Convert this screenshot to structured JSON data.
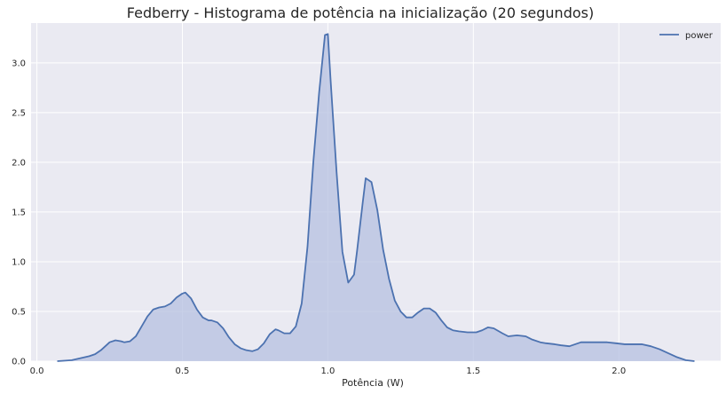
{
  "chart_data": {
    "type": "area",
    "title": "Fedberry - Histograma de potência na inicialização (20 segundos)",
    "xlabel": "Potência (W)",
    "ylabel": "",
    "xlim": [
      -0.02,
      2.35
    ],
    "ylim": [
      0,
      3.4
    ],
    "xticks": [
      0.0,
      0.5,
      1.0,
      1.5,
      2.0
    ],
    "xtick_labels": [
      "0.0",
      "0.5",
      "1.0",
      "1.5",
      "2.0"
    ],
    "yticks": [
      0.0,
      0.5,
      1.0,
      1.5,
      2.0,
      2.5,
      3.0
    ],
    "ytick_labels": [
      "0.0",
      "0.5",
      "1.0",
      "1.5",
      "2.0",
      "2.5",
      "3.0"
    ],
    "grid": true,
    "legend_position": "top-right",
    "series": [
      {
        "name": "power",
        "color": "#4c72b0",
        "fill_color": "#b6c0e0",
        "x": [
          0.07,
          0.12,
          0.15,
          0.18,
          0.2,
          0.22,
          0.25,
          0.27,
          0.29,
          0.3,
          0.32,
          0.34,
          0.36,
          0.38,
          0.4,
          0.42,
          0.44,
          0.46,
          0.48,
          0.5,
          0.51,
          0.53,
          0.55,
          0.57,
          0.59,
          0.6,
          0.62,
          0.64,
          0.66,
          0.68,
          0.7,
          0.72,
          0.74,
          0.76,
          0.78,
          0.8,
          0.82,
          0.83,
          0.85,
          0.87,
          0.89,
          0.91,
          0.93,
          0.95,
          0.97,
          0.99,
          1.0,
          1.01,
          1.03,
          1.05,
          1.07,
          1.09,
          1.1,
          1.12,
          1.13,
          1.15,
          1.17,
          1.19,
          1.21,
          1.23,
          1.25,
          1.27,
          1.29,
          1.31,
          1.33,
          1.35,
          1.37,
          1.39,
          1.41,
          1.43,
          1.45,
          1.48,
          1.51,
          1.53,
          1.55,
          1.57,
          1.6,
          1.62,
          1.65,
          1.68,
          1.7,
          1.73,
          1.75,
          1.78,
          1.8,
          1.83,
          1.87,
          1.9,
          1.93,
          1.96,
          1.99,
          2.02,
          2.05,
          2.08,
          2.11,
          2.14,
          2.17,
          2.2,
          2.23,
          2.26
        ],
        "y": [
          0.0,
          0.01,
          0.03,
          0.05,
          0.07,
          0.11,
          0.19,
          0.21,
          0.2,
          0.19,
          0.2,
          0.25,
          0.35,
          0.45,
          0.52,
          0.54,
          0.55,
          0.58,
          0.64,
          0.68,
          0.69,
          0.63,
          0.52,
          0.44,
          0.41,
          0.41,
          0.39,
          0.33,
          0.24,
          0.17,
          0.13,
          0.11,
          0.1,
          0.12,
          0.18,
          0.27,
          0.32,
          0.31,
          0.28,
          0.28,
          0.35,
          0.58,
          1.15,
          2.0,
          2.7,
          3.28,
          3.29,
          2.8,
          1.9,
          1.1,
          0.79,
          0.87,
          1.1,
          1.6,
          1.84,
          1.8,
          1.52,
          1.12,
          0.83,
          0.61,
          0.5,
          0.44,
          0.44,
          0.49,
          0.53,
          0.53,
          0.49,
          0.41,
          0.34,
          0.31,
          0.3,
          0.29,
          0.29,
          0.31,
          0.34,
          0.33,
          0.28,
          0.25,
          0.26,
          0.25,
          0.22,
          0.19,
          0.18,
          0.17,
          0.16,
          0.15,
          0.19,
          0.19,
          0.19,
          0.19,
          0.18,
          0.17,
          0.17,
          0.17,
          0.15,
          0.12,
          0.08,
          0.04,
          0.01,
          0.0
        ]
      }
    ]
  }
}
